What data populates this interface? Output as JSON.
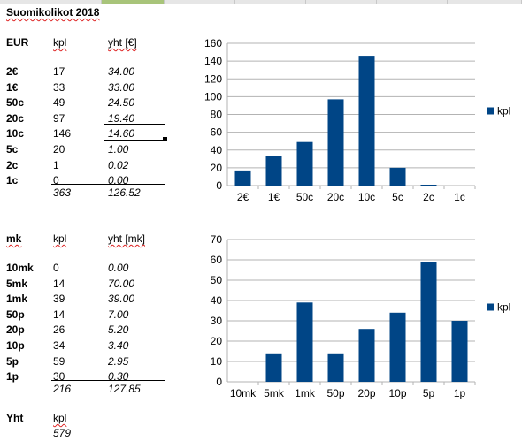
{
  "sheet": {
    "title": "Suomikolikot 2018",
    "eur": {
      "headers": {
        "label": "EUR",
        "kpl": "kpl",
        "yht": "yht [€]"
      },
      "rows": [
        {
          "label": "2€",
          "kpl": "17",
          "yht": "34.00"
        },
        {
          "label": "1€",
          "kpl": "33",
          "yht": "33.00"
        },
        {
          "label": "50c",
          "kpl": "49",
          "yht": "24.50"
        },
        {
          "label": "20c",
          "kpl": "97",
          "yht": "19.40"
        },
        {
          "label": "10c",
          "kpl": "146",
          "yht": "14.60"
        },
        {
          "label": "5c",
          "kpl": "20",
          "yht": "1.00"
        },
        {
          "label": "2c",
          "kpl": "1",
          "yht": "0.02"
        },
        {
          "label": "1c",
          "kpl": "0",
          "yht": "0.00"
        }
      ],
      "totals": {
        "kpl": "363",
        "yht": "126.52"
      }
    },
    "mk": {
      "headers": {
        "label": "mk",
        "kpl": "kpl",
        "yht": "yht [mk]"
      },
      "rows": [
        {
          "label": "10mk",
          "kpl": "0",
          "yht": "0.00"
        },
        {
          "label": "5mk",
          "kpl": "14",
          "yht": "70.00"
        },
        {
          "label": "1mk",
          "kpl": "39",
          "yht": "39.00"
        },
        {
          "label": "50p",
          "kpl": "14",
          "yht": "7.00"
        },
        {
          "label": "20p",
          "kpl": "26",
          "yht": "5.20"
        },
        {
          "label": "10p",
          "kpl": "34",
          "yht": "3.40"
        },
        {
          "label": "5p",
          "kpl": "59",
          "yht": "2.95"
        },
        {
          "label": "1p",
          "kpl": "30",
          "yht": "0.30"
        }
      ],
      "totals": {
        "kpl": "216",
        "yht": "127.85"
      }
    },
    "grand": {
      "label": "Yht",
      "kpl_header": "kpl",
      "kpl": "579"
    }
  },
  "chart_data": [
    {
      "type": "bar",
      "categories": [
        "2€",
        "1€",
        "50c",
        "20c",
        "10c",
        "5c",
        "2c",
        "1c"
      ],
      "series": [
        {
          "name": "kpl",
          "values": [
            17,
            33,
            49,
            97,
            146,
            20,
            1,
            0
          ]
        }
      ],
      "yticks": [
        "0",
        "20",
        "40",
        "60",
        "80",
        "100",
        "120",
        "140",
        "160"
      ],
      "ylim": [
        0,
        160
      ],
      "grid": true,
      "legend": "right",
      "color": "#004586"
    },
    {
      "type": "bar",
      "categories": [
        "10mk",
        "5mk",
        "1mk",
        "50p",
        "20p",
        "10p",
        "5p",
        "1p"
      ],
      "series": [
        {
          "name": "kpl",
          "values": [
            0,
            14,
            39,
            14,
            26,
            34,
            59,
            30
          ]
        }
      ],
      "yticks": [
        "0",
        "10",
        "20",
        "30",
        "40",
        "50",
        "60",
        "70"
      ],
      "ylim": [
        0,
        70
      ],
      "grid": true,
      "legend": "right",
      "color": "#004586"
    }
  ]
}
